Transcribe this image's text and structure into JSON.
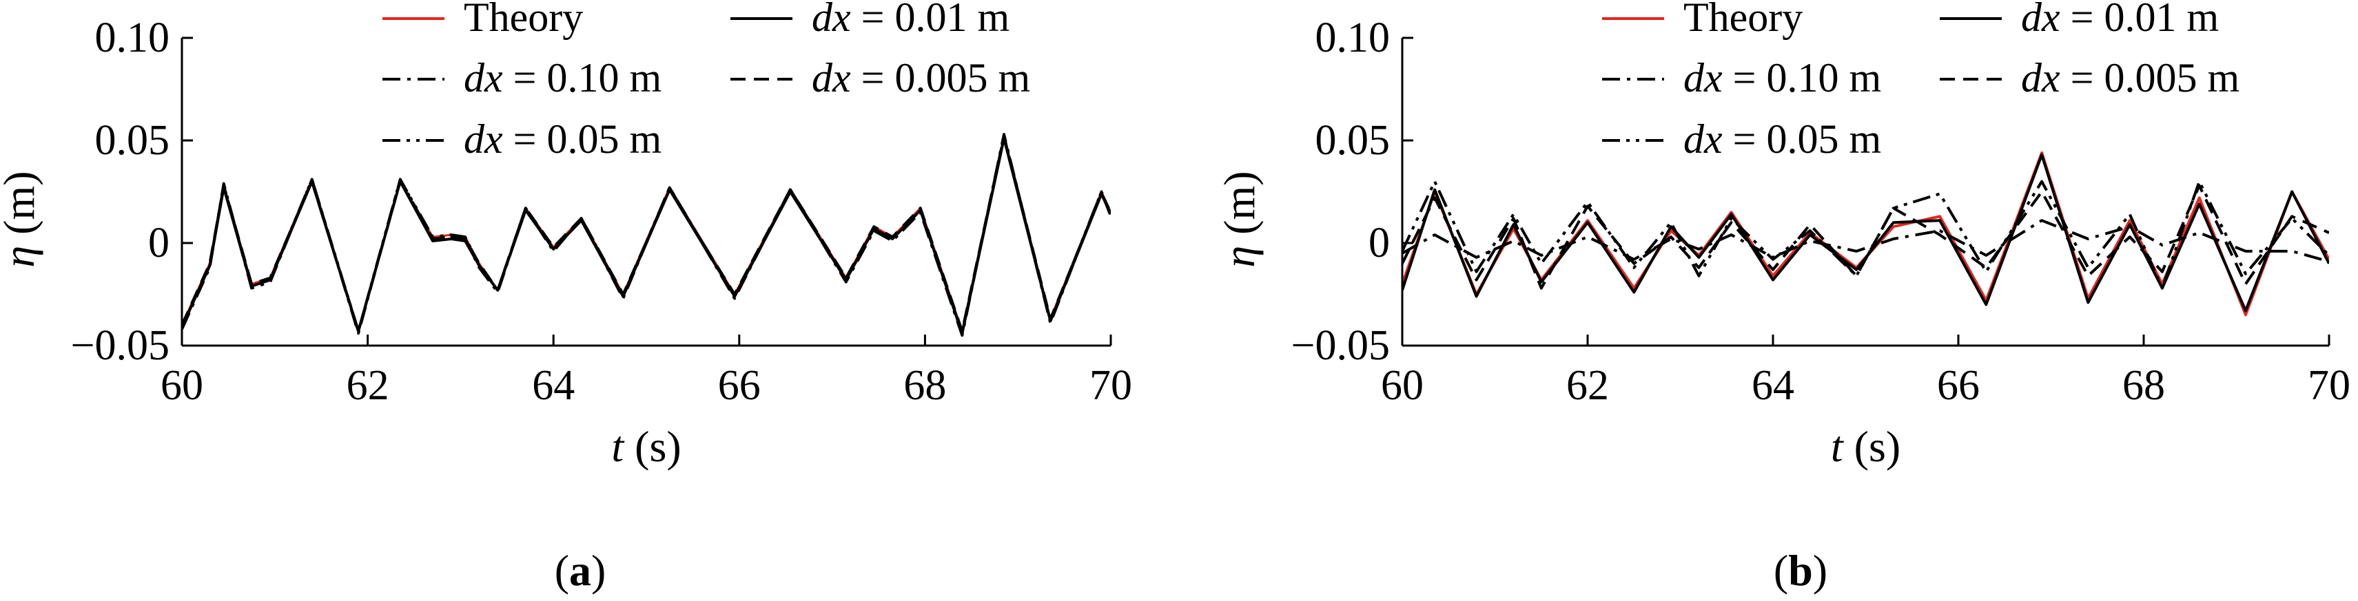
{
  "colors": {
    "theory": "#e8251f",
    "numeric": "#000000"
  },
  "chart_data": [
    {
      "type": "line",
      "caption": "a",
      "xlabel": {
        "var": "t",
        "unit": "(s)"
      },
      "ylabel": {
        "var": "η",
        "unit": "(m)"
      },
      "xlim": [
        60,
        70
      ],
      "ylim": [
        -0.05,
        0.1
      ],
      "xticks": [
        60,
        62,
        64,
        66,
        68,
        70
      ],
      "yticks": [
        -0.05,
        0,
        0.05,
        0.1
      ],
      "ytick_labels": [
        "−0.05",
        "0",
        "0.05",
        "0.10"
      ],
      "grid": false,
      "legend_position": "top",
      "legend": [
        {
          "var": "",
          "text": "Theory",
          "style": "solid",
          "color": "#e8251f"
        },
        {
          "var": "dx",
          "text": " = 0.01 m",
          "style": "solid",
          "color": "#000000"
        },
        {
          "var": "dx",
          "text": " = 0.10 m",
          "style": "dashdot",
          "color": "#000000"
        },
        {
          "var": "dx",
          "text": " = 0.005 m",
          "style": "dashed",
          "color": "#000000"
        },
        {
          "var": "dx",
          "text": " = 0.05 m",
          "style": "dashdotdot",
          "color": "#000000"
        }
      ],
      "x": [
        60.0,
        60.3,
        60.45,
        60.75,
        60.95,
        61.4,
        61.9,
        62.35,
        62.7,
        62.9,
        63.05,
        63.2,
        63.4,
        63.7,
        64.0,
        64.3,
        64.75,
        65.25,
        65.95,
        66.55,
        67.15,
        67.45,
        67.65,
        67.95,
        68.4,
        68.85,
        69.35,
        69.9,
        70.0
      ],
      "series": [
        {
          "style": "solid",
          "color": "#e8251f",
          "width": 3,
          "y": [
            -0.04,
            -0.01,
            0.028,
            -0.02,
            -0.017,
            0.031,
            -0.043,
            0.03,
            0.003,
            0.004,
            0.003,
            -0.01,
            -0.023,
            0.017,
            -0.002,
            0.012,
            -0.025,
            0.027,
            -0.025,
            0.026,
            -0.017,
            0.008,
            0.003,
            0.017,
            -0.043,
            0.052,
            -0.037,
            0.025,
            0.015
          ]
        },
        {
          "style": "solid",
          "color": "#000000",
          "width": 4,
          "y": [
            -0.041,
            -0.011,
            0.027,
            -0.021,
            -0.018,
            0.03,
            -0.043,
            0.03,
            0.001,
            0.002,
            0.001,
            -0.011,
            -0.023,
            0.016,
            -0.003,
            0.011,
            -0.026,
            0.026,
            -0.026,
            0.025,
            -0.018,
            0.007,
            0.002,
            0.016,
            -0.044,
            0.051,
            -0.038,
            0.024,
            0.014
          ]
        },
        {
          "style": "dashdot",
          "color": "#000000",
          "width": 4,
          "y": [
            -0.042,
            -0.012,
            0.029,
            -0.022,
            -0.019,
            0.031,
            -0.044,
            0.031,
            0.002,
            0.003,
            0.002,
            -0.012,
            -0.024,
            0.017,
            -0.004,
            0.012,
            -0.027,
            0.027,
            -0.027,
            0.026,
            -0.019,
            0.006,
            0.001,
            0.015,
            -0.045,
            0.053,
            -0.039,
            0.025,
            0.013
          ]
        },
        {
          "style": "dashed",
          "color": "#000000",
          "width": 4,
          "y": [
            -0.04,
            -0.01,
            0.028,
            -0.02,
            -0.017,
            0.03,
            -0.043,
            0.03,
            0.002,
            0.003,
            0.002,
            -0.01,
            -0.023,
            0.017,
            -0.002,
            0.012,
            -0.025,
            0.026,
            -0.025,
            0.026,
            -0.017,
            0.008,
            0.003,
            0.017,
            -0.043,
            0.052,
            -0.037,
            0.024,
            0.015
          ]
        },
        {
          "style": "dashdotdot",
          "color": "#000000",
          "width": 4,
          "y": [
            -0.041,
            -0.011,
            0.028,
            -0.021,
            -0.018,
            0.031,
            -0.043,
            0.031,
            0.003,
            0.004,
            0.003,
            -0.011,
            -0.023,
            0.017,
            -0.003,
            0.012,
            -0.026,
            0.027,
            -0.026,
            0.026,
            -0.018,
            0.007,
            0.002,
            0.016,
            -0.044,
            0.052,
            -0.038,
            0.025,
            0.014
          ]
        }
      ]
    },
    {
      "type": "line",
      "caption": "b",
      "xlabel": {
        "var": "t",
        "unit": "(s)"
      },
      "ylabel": {
        "var": "η",
        "unit": "(m)"
      },
      "xlim": [
        60,
        70
      ],
      "ylim": [
        -0.05,
        0.1
      ],
      "xticks": [
        60,
        62,
        64,
        66,
        68,
        70
      ],
      "yticks": [
        -0.05,
        0,
        0.05,
        0.1
      ],
      "ytick_labels": [
        "−0.05",
        "0",
        "0.05",
        "0.10"
      ],
      "grid": false,
      "legend_position": "top",
      "legend": [
        {
          "var": "",
          "text": "Theory",
          "style": "solid",
          "color": "#e8251f"
        },
        {
          "var": "dx",
          "text": " = 0.01 m",
          "style": "solid",
          "color": "#000000"
        },
        {
          "var": "dx",
          "text": " = 0.10 m",
          "style": "dashdot",
          "color": "#000000"
        },
        {
          "var": "dx",
          "text": " = 0.005 m",
          "style": "dashed",
          "color": "#000000"
        },
        {
          "var": "dx",
          "text": " = 0.05 m",
          "style": "dashdotdot",
          "color": "#000000"
        }
      ],
      "x": [
        60.0,
        60.35,
        60.8,
        61.2,
        61.5,
        62.0,
        62.5,
        62.9,
        63.2,
        63.55,
        64.0,
        64.4,
        64.9,
        65.3,
        65.8,
        66.3,
        66.9,
        67.4,
        67.85,
        68.2,
        68.6,
        69.1,
        69.6,
        70.0
      ],
      "series": [
        {
          "style": "solid",
          "color": "#e8251f",
          "width": 4,
          "y": [
            -0.02,
            0.025,
            -0.025,
            0.007,
            -0.018,
            0.011,
            -0.022,
            0.006,
            -0.006,
            0.015,
            -0.016,
            0.005,
            -0.012,
            0.008,
            0.013,
            -0.028,
            0.044,
            -0.027,
            0.011,
            -0.02,
            0.022,
            -0.035,
            0.025,
            -0.008
          ]
        },
        {
          "style": "solid",
          "color": "#000000",
          "width": 4,
          "y": [
            -0.023,
            0.026,
            -0.026,
            0.009,
            -0.019,
            0.01,
            -0.024,
            0.008,
            -0.007,
            0.014,
            -0.018,
            0.004,
            -0.013,
            0.01,
            0.011,
            -0.03,
            0.043,
            -0.029,
            0.009,
            -0.022,
            0.019,
            -0.033,
            0.025,
            -0.01
          ]
        },
        {
          "style": "dashdot",
          "color": "#000000",
          "width": 4,
          "y": [
            -0.005,
            0.004,
            -0.007,
            0.001,
            -0.006,
            0.003,
            -0.008,
            0.002,
            -0.003,
            0.004,
            -0.007,
            0.001,
            -0.004,
            0.002,
            0.006,
            -0.006,
            0.011,
            0.002,
            0.008,
            -0.001,
            0.005,
            -0.004,
            -0.004,
            -0.009
          ]
        },
        {
          "style": "dashed",
          "color": "#000000",
          "width": 4,
          "y": [
            -0.01,
            0.022,
            -0.018,
            0.012,
            -0.022,
            0.018,
            -0.01,
            0.003,
            -0.012,
            0.01,
            -0.013,
            0.009,
            -0.016,
            0.017,
            0.004,
            -0.012,
            0.025,
            -0.016,
            0.003,
            -0.014,
            0.028,
            -0.02,
            0.013,
            0.005
          ]
        },
        {
          "style": "dashdotdot",
          "color": "#000000",
          "width": 4,
          "y": [
            -0.004,
            0.03,
            -0.014,
            0.014,
            -0.01,
            0.02,
            -0.012,
            0.01,
            -0.016,
            0.012,
            -0.008,
            0.006,
            -0.016,
            0.017,
            0.024,
            -0.014,
            0.03,
            -0.012,
            0.014,
            -0.022,
            0.03,
            -0.015,
            0.012,
            -0.006
          ]
        }
      ]
    }
  ]
}
